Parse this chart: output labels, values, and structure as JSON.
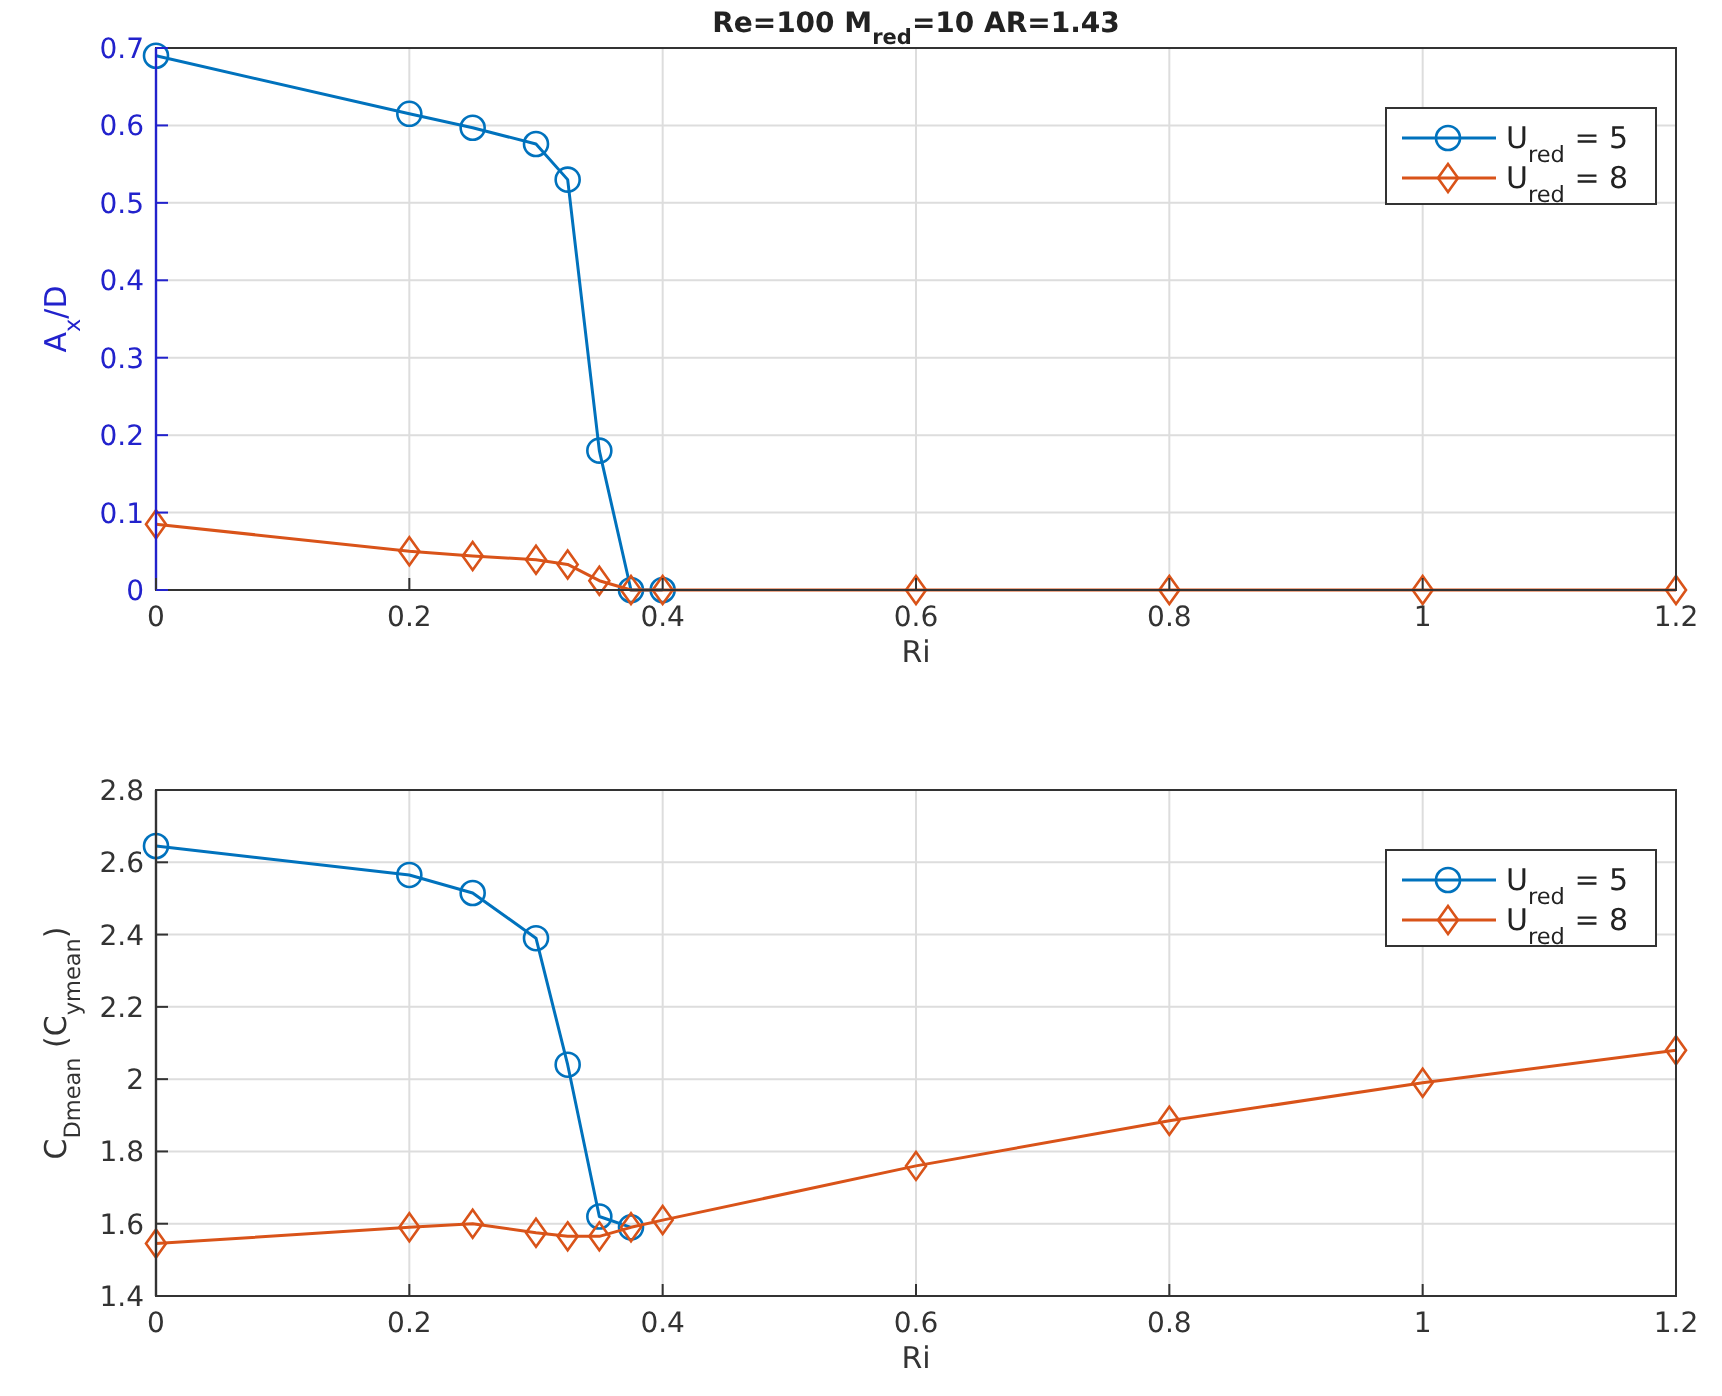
{
  "chart_data": [
    {
      "type": "line",
      "title": "Re=100 M$_{red}$=10 AR=1.43",
      "xlabel": "Ri",
      "ylabel": "A$_{x}$/D",
      "x": [
        0,
        0.2,
        0.25,
        0.3,
        0.325,
        0.35,
        0.375,
        0.4,
        0.6,
        0.8,
        1,
        1.2
      ],
      "series": [
        {
          "name": "U$_{red}$ = 5",
          "color": "#0072bd",
          "marker": "circle",
          "values": [
            0.69,
            0.615,
            0.597,
            0.576,
            0.53,
            0.18,
            0,
            0,
            null,
            null,
            null,
            null
          ]
        },
        {
          "name": "U$_{red}$ = 8",
          "color": "#d95319",
          "marker": "diamond",
          "values": [
            0.085,
            0.05,
            0.044,
            0.039,
            0.033,
            0.012,
            0,
            0,
            0,
            0,
            0,
            0
          ]
        }
      ],
      "xlim": [
        0,
        1.2
      ],
      "xticks": [
        0,
        0.2,
        0.4,
        0.6,
        0.8,
        1,
        1.2
      ],
      "ylim": [
        0,
        0.7
      ],
      "yticks": [
        0,
        0.1,
        0.2,
        0.3,
        0.4,
        0.5,
        0.6,
        0.7
      ],
      "grid": true,
      "legend": "top right"
    },
    {
      "type": "line",
      "xlabel": "Ri",
      "ylabel": "C$_{Dmean}$  (C$_{ymean}$)",
      "x": [
        0,
        0.2,
        0.25,
        0.3,
        0.325,
        0.35,
        0.375,
        0.4,
        0.6,
        0.8,
        1,
        1.2
      ],
      "series": [
        {
          "name": "U$_{red}$ = 5",
          "color": "#0072bd",
          "marker": "circle",
          "x": [
            0,
            0.2,
            0.25,
            0.3,
            0.325,
            0.35,
            0.375
          ],
          "values": [
            2.645,
            2.565,
            2.515,
            2.39,
            2.04,
            1.62,
            1.59
          ]
        },
        {
          "name": "U$_{red}$ = 8",
          "color": "#d95319",
          "marker": "diamond",
          "values": [
            1.545,
            1.59,
            1.6,
            1.575,
            1.565,
            1.565,
            1.59,
            1.61,
            1.76,
            1.885,
            1.99,
            2.08
          ]
        }
      ],
      "xlim": [
        0,
        1.2
      ],
      "xticks": [
        0,
        0.2,
        0.4,
        0.6,
        0.8,
        1,
        1.2
      ],
      "ylim": [
        1.4,
        2.8
      ],
      "yticks": [
        1.4,
        1.6,
        1.8,
        2,
        2.2,
        2.4,
        2.6,
        2.8
      ],
      "grid": true,
      "legend": "top right"
    }
  ]
}
